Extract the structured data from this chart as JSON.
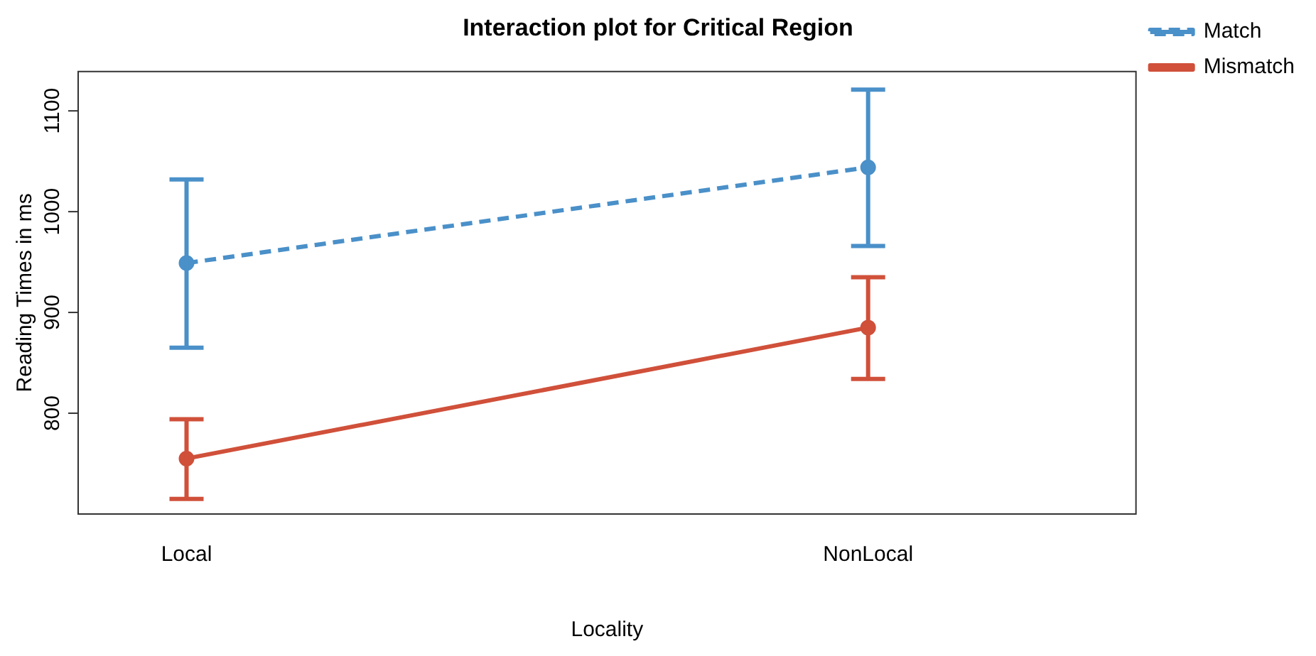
{
  "chart_data": {
    "type": "line",
    "title": "Interaction plot for Critical Region",
    "xlabel": "Locality",
    "ylabel": "Reading Times in ms",
    "categories": [
      "Local",
      "NonLocal"
    ],
    "series": [
      {
        "name": "Match",
        "color": "#4a90c9",
        "values": [
          949,
          1044
        ],
        "errors": [
          [
            865,
            1032
          ],
          [
            966,
            1121
          ]
        ],
        "line_style": "dashed",
        "marker": "circle"
      },
      {
        "name": "Mismatch",
        "color": "#d0503a",
        "values": [
          755,
          885
        ],
        "errors": [
          [
            715,
            794
          ],
          [
            834,
            935
          ]
        ],
        "line_style": "solid",
        "marker": "circle"
      }
    ],
    "ylim": [
      700,
      1139
    ],
    "yticks": [
      800,
      900,
      1000,
      1100
    ],
    "grid": false,
    "legend": "right"
  }
}
